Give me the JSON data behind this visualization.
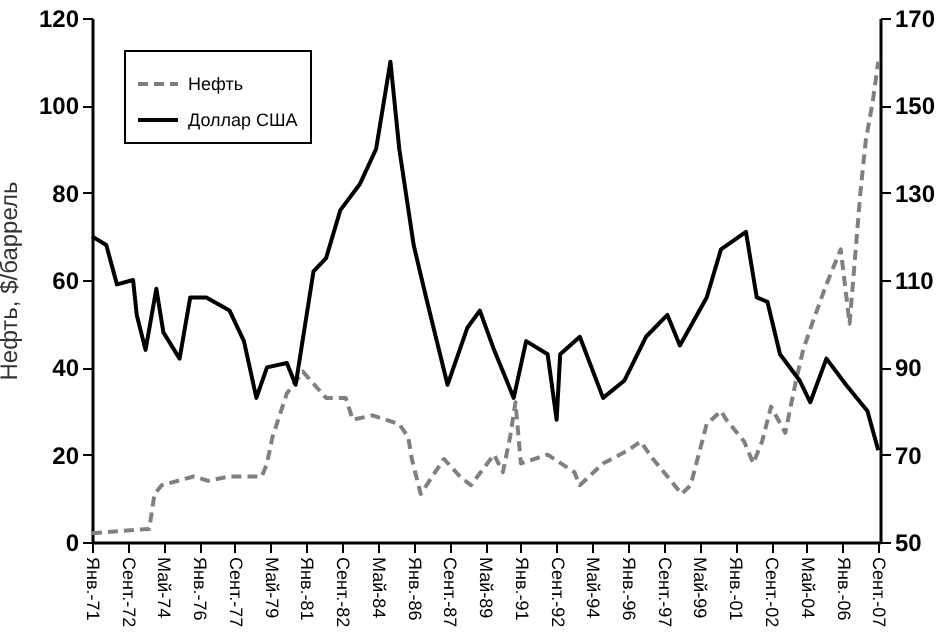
{
  "chart_data": {
    "type": "line",
    "ylabel": "Нефть, $/баррель",
    "legend": "top left",
    "grid": false,
    "xlim": [
      "1971-01",
      "2007-10"
    ],
    "xticks": [
      {
        "value": "1971-01",
        "label": "Янв.-71"
      },
      {
        "value": "1972-09",
        "label": "Сент.-72"
      },
      {
        "value": "1974-05",
        "label": "Май-74"
      },
      {
        "value": "1976-01",
        "label": "Янв.-76"
      },
      {
        "value": "1977-09",
        "label": "Сент.-77"
      },
      {
        "value": "1979-05",
        "label": "Май-79"
      },
      {
        "value": "1981-01",
        "label": "Янв.-81"
      },
      {
        "value": "1982-09",
        "label": "Сент.-82"
      },
      {
        "value": "1984-05",
        "label": "Май-84"
      },
      {
        "value": "1986-01",
        "label": "Янв.-86"
      },
      {
        "value": "1987-09",
        "label": "Сент.-87"
      },
      {
        "value": "1989-05",
        "label": "Май-89"
      },
      {
        "value": "1991-01",
        "label": "Янв.-91"
      },
      {
        "value": "1992-09",
        "label": "Сент.-92"
      },
      {
        "value": "1994-05",
        "label": "Май-94"
      },
      {
        "value": "1996-01",
        "label": "Янв.-96"
      },
      {
        "value": "1997-09",
        "label": "Сент.-97"
      },
      {
        "value": "1999-05",
        "label": "Май-99"
      },
      {
        "value": "2001-01",
        "label": "Янв.-01"
      },
      {
        "value": "2002-09",
        "label": "Сент.-02"
      },
      {
        "value": "2004-05",
        "label": "Май-04"
      },
      {
        "value": "2006-01",
        "label": "Янв.-06"
      },
      {
        "value": "2007-09",
        "label": "Сент.-07"
      }
    ],
    "ylim": [
      0,
      120
    ],
    "yticks": [
      0,
      20,
      40,
      60,
      80,
      100,
      120
    ],
    "y2lim": [
      50,
      170
    ],
    "y2ticks": [
      50,
      70,
      90,
      110,
      130,
      150,
      170
    ],
    "series": [
      {
        "name": "Нефть",
        "color": "#808080",
        "line_style": "dashed",
        "x": [
          "1971-01",
          "1973-09",
          "1973-12",
          "1974-04",
          "1975-10",
          "1976-06",
          "1977-06",
          "1978-12",
          "1979-03",
          "1979-06",
          "1980-02",
          "1980-11",
          "1981-12",
          "1982-11",
          "1983-03",
          "1984-02",
          "1985-05",
          "1985-10",
          "1985-12",
          "1986-05",
          "1987-06",
          "1988-03",
          "1988-09",
          "1989-10",
          "1990-03",
          "1990-07",
          "1990-10",
          "1991-01",
          "1992-04",
          "1993-07",
          "1993-10",
          "1994-11",
          "1996-01",
          "1996-08",
          "1997-03",
          "1997-11",
          "1998-07",
          "1998-12",
          "1999-09",
          "2000-05",
          "2000-08",
          "2001-06",
          "2001-11",
          "2002-04",
          "2002-09",
          "2003-05",
          "2003-11",
          "2004-03",
          "2004-08",
          "2005-04",
          "2005-12",
          "2006-05",
          "2006-11",
          "2007-02",
          "2007-06",
          "2007-09"
        ],
        "values": [
          2,
          3,
          11,
          13,
          15,
          14,
          15,
          15,
          18,
          24,
          34,
          39,
          33,
          33,
          28,
          29,
          27,
          24,
          19,
          11,
          19,
          15,
          13,
          20,
          16,
          24,
          32,
          18,
          20,
          16,
          13,
          18,
          21,
          23,
          19,
          15,
          11,
          13,
          27,
          30,
          28,
          23,
          18,
          23,
          31,
          25,
          37,
          44,
          50,
          59,
          67,
          50,
          80,
          92,
          101,
          110
        ]
      },
      {
        "name": "Доллар США",
        "color": "#000000",
        "line_style": "solid",
        "axis": "y2",
        "x": [
          "1971-01",
          "1971-09",
          "1972-03",
          "1972-12",
          "1973-02",
          "1973-07",
          "1974-01",
          "1974-05",
          "1975-02",
          "1975-08",
          "1976-05",
          "1977-06",
          "1978-02",
          "1978-09",
          "1979-03",
          "1980-02",
          "1980-07",
          "1981-05",
          "1981-12",
          "1982-08",
          "1983-07",
          "1984-04",
          "1984-12",
          "1985-05",
          "1986-01",
          "1986-08",
          "1987-08",
          "1988-07",
          "1989-02",
          "1989-10",
          "1990-09",
          "1991-04",
          "1992-04",
          "1992-09",
          "1992-11",
          "1993-10",
          "1994-11",
          "1995-11",
          "1996-11",
          "1997-11",
          "1998-06",
          "1999-09",
          "2000-05",
          "2001-07",
          "2002-01",
          "2002-07",
          "2003-02",
          "2004-01",
          "2004-07",
          "2005-04",
          "2006-03",
          "2007-03",
          "2007-09"
        ],
        "values": [
          120,
          118,
          109,
          110,
          102,
          94,
          108,
          98,
          92,
          106,
          106,
          103,
          96,
          83,
          90,
          91,
          86,
          112,
          115,
          126,
          132,
          140,
          160,
          140,
          118,
          106,
          86,
          99,
          103,
          94,
          83,
          96,
          93,
          78,
          93,
          97,
          83,
          87,
          97,
          102,
          95,
          106,
          117,
          121,
          106,
          105,
          93,
          87,
          82,
          92,
          86,
          80,
          71
        ]
      }
    ]
  }
}
